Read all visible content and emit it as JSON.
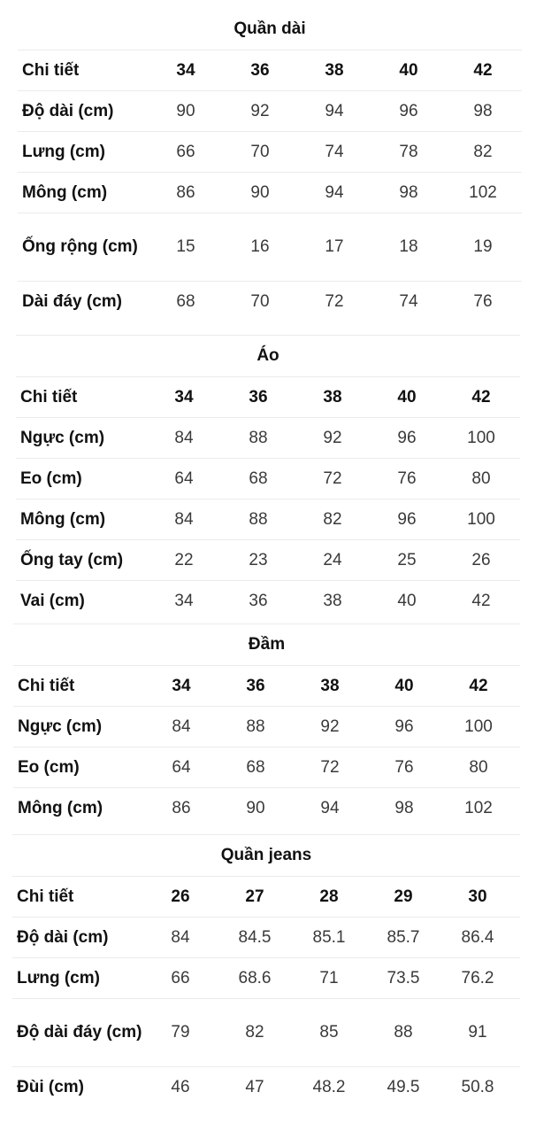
{
  "tables": [
    {
      "title": "Quần dài",
      "header": {
        "label": "Chi tiết",
        "sizes": [
          "34",
          "36",
          "38",
          "40",
          "42"
        ]
      },
      "rows": [
        {
          "label": "Độ dài (cm)",
          "values": [
            "90",
            "92",
            "94",
            "96",
            "98"
          ]
        },
        {
          "label": "Lưng (cm)",
          "values": [
            "66",
            "70",
            "74",
            "78",
            "82"
          ]
        },
        {
          "label": "Mông (cm)",
          "values": [
            "86",
            "90",
            "94",
            "98",
            "102"
          ]
        },
        {
          "label": "Ống rộng (cm)",
          "values": [
            "15",
            "16",
            "17",
            "18",
            "19"
          ]
        },
        {
          "label": "Dài đáy (cm)",
          "values": [
            "68",
            "70",
            "72",
            "74",
            "76"
          ]
        }
      ]
    },
    {
      "title": "Áo",
      "header": {
        "label": "Chi tiết",
        "sizes": [
          "34",
          "36",
          "38",
          "40",
          "42"
        ]
      },
      "rows": [
        {
          "label": "Ngực (cm)",
          "values": [
            "84",
            "88",
            "92",
            "96",
            "100"
          ]
        },
        {
          "label": "Eo (cm)",
          "values": [
            "64",
            "68",
            "72",
            "76",
            "80"
          ]
        },
        {
          "label": "Mông (cm)",
          "values": [
            "84",
            "88",
            "82",
            "96",
            "100"
          ]
        },
        {
          "label": "Ống tay (cm)",
          "values": [
            "22",
            "23",
            "24",
            "25",
            "26"
          ]
        },
        {
          "label": "Vai (cm)",
          "values": [
            "34",
            "36",
            "38",
            "40",
            "42"
          ]
        }
      ]
    },
    {
      "title": "Đầm",
      "header": {
        "label": "Chi tiết",
        "sizes": [
          "34",
          "36",
          "38",
          "40",
          "42"
        ]
      },
      "rows": [
        {
          "label": "Ngực (cm)",
          "values": [
            "84",
            "88",
            "92",
            "96",
            "100"
          ]
        },
        {
          "label": "Eo (cm)",
          "values": [
            "64",
            "68",
            "72",
            "76",
            "80"
          ]
        },
        {
          "label": "Mông (cm)",
          "values": [
            "86",
            "90",
            "94",
            "98",
            "102"
          ]
        }
      ]
    },
    {
      "title": "Quần jeans",
      "header": {
        "label": "Chi tiết",
        "sizes": [
          "26",
          "27",
          "28",
          "29",
          "30"
        ]
      },
      "rows": [
        {
          "label": "Độ dài (cm)",
          "values": [
            "84",
            "84.5",
            "85.1",
            "85.7",
            "86.4"
          ]
        },
        {
          "label": "Lưng (cm)",
          "values": [
            "66",
            "68.6",
            "71",
            "73.5",
            "76.2"
          ]
        },
        {
          "label": "Độ dài đáy (cm)",
          "values": [
            "79",
            "82",
            "85",
            "88",
            "91"
          ]
        },
        {
          "label": "Đùi (cm)",
          "values": [
            "46",
            "47",
            "48.2",
            "49.5",
            "50.8"
          ]
        }
      ]
    }
  ]
}
